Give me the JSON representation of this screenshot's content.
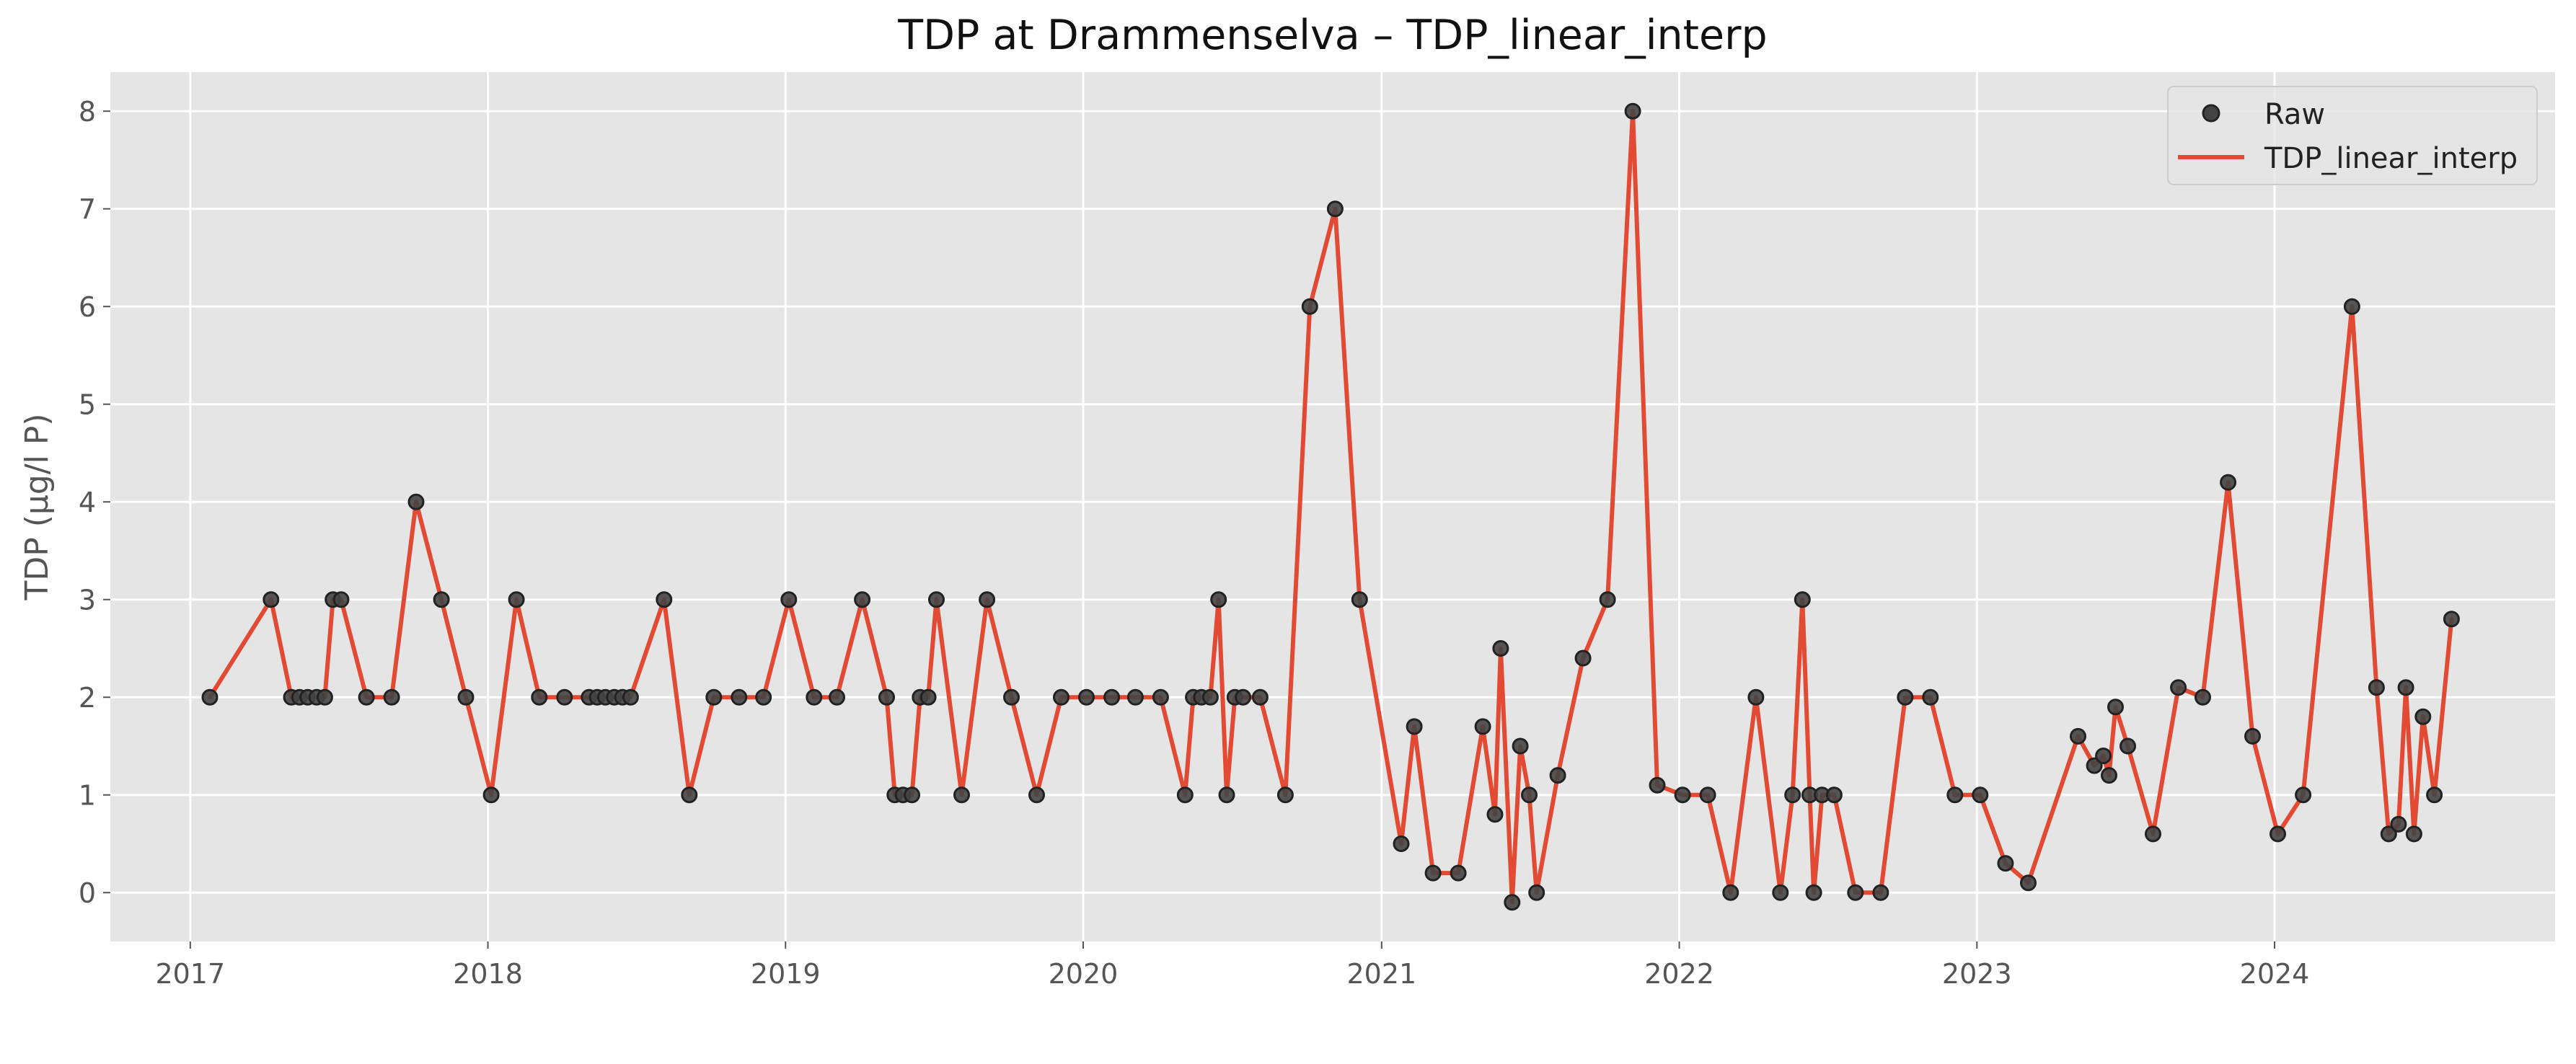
{
  "chart_data": {
    "type": "line",
    "title": "TDP at Drammenselva – TDP_linear_interp",
    "xlabel": "",
    "ylabel": "TDP (µg/l P)",
    "xlim": [
      "2016-09-25",
      "2024-12-10"
    ],
    "ylim": [
      -0.5,
      8.4
    ],
    "x_ticks": [
      "2017",
      "2018",
      "2019",
      "2020",
      "2021",
      "2022",
      "2023",
      "2024"
    ],
    "y_ticks": [
      0,
      1,
      2,
      3,
      4,
      5,
      6,
      7,
      8
    ],
    "grid": true,
    "legend_position": "top-right",
    "colors": {
      "background": "#e5e5e5",
      "grid": "#ffffff",
      "line": "#e24a33",
      "marker": "#444444",
      "text": "#555555",
      "title": "#111111"
    },
    "series": [
      {
        "name": "Raw",
        "kind": "scatter",
        "points": [
          [
            "2017-01-25",
            2
          ],
          [
            "2017-04-10",
            3
          ],
          [
            "2017-05-05",
            2
          ],
          [
            "2017-05-15",
            2
          ],
          [
            "2017-05-25",
            2
          ],
          [
            "2017-06-05",
            2
          ],
          [
            "2017-06-15",
            2
          ],
          [
            "2017-06-25",
            3
          ],
          [
            "2017-07-05",
            3
          ],
          [
            "2017-08-05",
            2
          ],
          [
            "2017-09-05",
            2
          ],
          [
            "2017-10-05",
            4
          ],
          [
            "2017-11-05",
            3
          ],
          [
            "2017-12-05",
            2
          ],
          [
            "2018-01-05",
            1
          ],
          [
            "2018-02-05",
            3
          ],
          [
            "2018-03-05",
            2
          ],
          [
            "2018-04-05",
            2
          ],
          [
            "2018-05-05",
            2
          ],
          [
            "2018-05-15",
            2
          ],
          [
            "2018-05-25",
            2
          ],
          [
            "2018-06-05",
            2
          ],
          [
            "2018-06-15",
            2
          ],
          [
            "2018-06-25",
            2
          ],
          [
            "2018-08-05",
            3
          ],
          [
            "2018-09-05",
            1
          ],
          [
            "2018-10-05",
            2
          ],
          [
            "2018-11-05",
            2
          ],
          [
            "2018-12-05",
            2
          ],
          [
            "2019-01-05",
            3
          ],
          [
            "2019-02-05",
            2
          ],
          [
            "2019-03-05",
            2
          ],
          [
            "2019-04-05",
            3
          ],
          [
            "2019-05-05",
            2
          ],
          [
            "2019-05-15",
            1
          ],
          [
            "2019-05-25",
            1
          ],
          [
            "2019-06-05",
            1
          ],
          [
            "2019-06-15",
            2
          ],
          [
            "2019-06-25",
            2
          ],
          [
            "2019-07-05",
            3
          ],
          [
            "2019-08-05",
            1
          ],
          [
            "2019-09-05",
            3
          ],
          [
            "2019-10-05",
            2
          ],
          [
            "2019-11-05",
            1
          ],
          [
            "2019-12-05",
            2
          ],
          [
            "2020-01-05",
            2
          ],
          [
            "2020-02-05",
            2
          ],
          [
            "2020-03-05",
            2
          ],
          [
            "2020-04-05",
            2
          ],
          [
            "2020-05-05",
            1
          ],
          [
            "2020-05-15",
            2
          ],
          [
            "2020-05-25",
            2
          ],
          [
            "2020-06-05",
            2
          ],
          [
            "2020-06-15",
            3
          ],
          [
            "2020-06-25",
            1
          ],
          [
            "2020-07-05",
            2
          ],
          [
            "2020-07-15",
            2
          ],
          [
            "2020-08-05",
            2
          ],
          [
            "2020-09-05",
            1
          ],
          [
            "2020-10-05",
            6
          ],
          [
            "2020-11-05",
            7
          ],
          [
            "2020-12-05",
            3
          ],
          [
            "2021-01-25",
            0.5
          ],
          [
            "2021-02-10",
            1.7
          ],
          [
            "2021-03-05",
            0.2
          ],
          [
            "2021-04-05",
            0.2
          ],
          [
            "2021-05-05",
            1.7
          ],
          [
            "2021-05-20",
            0.8
          ],
          [
            "2021-05-27",
            2.5
          ],
          [
            "2021-06-10",
            -0.1
          ],
          [
            "2021-06-20",
            1.5
          ],
          [
            "2021-07-01",
            1
          ],
          [
            "2021-07-10",
            0
          ],
          [
            "2021-08-05",
            1.2
          ],
          [
            "2021-09-05",
            2.4
          ],
          [
            "2021-10-05",
            3
          ],
          [
            "2021-11-05",
            8
          ],
          [
            "2021-12-05",
            1.1
          ],
          [
            "2022-01-05",
            1
          ],
          [
            "2022-02-05",
            1
          ],
          [
            "2022-03-05",
            0
          ],
          [
            "2022-04-05",
            2
          ],
          [
            "2022-05-05",
            0
          ],
          [
            "2022-05-20",
            1
          ],
          [
            "2022-06-01",
            3
          ],
          [
            "2022-06-10",
            1
          ],
          [
            "2022-06-15",
            0
          ],
          [
            "2022-06-25",
            1
          ],
          [
            "2022-07-10",
            1
          ],
          [
            "2022-08-05",
            0
          ],
          [
            "2022-09-05",
            0
          ],
          [
            "2022-10-05",
            2
          ],
          [
            "2022-11-05",
            2
          ],
          [
            "2022-12-05",
            1
          ],
          [
            "2023-01-05",
            1
          ],
          [
            "2023-02-05",
            0.3
          ],
          [
            "2023-03-05",
            0.1
          ],
          [
            "2023-05-05",
            1.6
          ],
          [
            "2023-05-25",
            1.3
          ],
          [
            "2023-06-05",
            1.4
          ],
          [
            "2023-06-12",
            1.2
          ],
          [
            "2023-06-20",
            1.9
          ],
          [
            "2023-07-05",
            1.5
          ],
          [
            "2023-08-05",
            0.6
          ],
          [
            "2023-09-05",
            2.1
          ],
          [
            "2023-10-05",
            2
          ],
          [
            "2023-11-05",
            4.2
          ],
          [
            "2023-12-05",
            1.6
          ],
          [
            "2024-01-05",
            0.6
          ],
          [
            "2024-02-05",
            1
          ],
          [
            "2024-04-05",
            6
          ],
          [
            "2024-05-05",
            2.1
          ],
          [
            "2024-05-20",
            0.6
          ],
          [
            "2024-06-01",
            0.7
          ],
          [
            "2024-06-10",
            2.1
          ],
          [
            "2024-06-20",
            0.6
          ],
          [
            "2024-07-01",
            1.8
          ],
          [
            "2024-07-15",
            1
          ],
          [
            "2024-08-05",
            2.8
          ]
        ]
      },
      {
        "name": "TDP_linear_interp",
        "kind": "line",
        "points": [
          [
            "2017-01-25",
            2
          ],
          [
            "2017-04-10",
            3
          ],
          [
            "2017-05-05",
            2
          ],
          [
            "2017-05-15",
            2
          ],
          [
            "2017-05-25",
            2
          ],
          [
            "2017-06-05",
            2
          ],
          [
            "2017-06-15",
            2
          ],
          [
            "2017-06-25",
            3
          ],
          [
            "2017-07-05",
            3
          ],
          [
            "2017-08-05",
            2
          ],
          [
            "2017-09-05",
            2
          ],
          [
            "2017-10-05",
            4
          ],
          [
            "2017-11-05",
            3
          ],
          [
            "2017-12-05",
            2
          ],
          [
            "2018-01-05",
            1
          ],
          [
            "2018-02-05",
            3
          ],
          [
            "2018-03-05",
            2
          ],
          [
            "2018-04-05",
            2
          ],
          [
            "2018-05-05",
            2
          ],
          [
            "2018-05-15",
            2
          ],
          [
            "2018-05-25",
            2
          ],
          [
            "2018-06-05",
            2
          ],
          [
            "2018-06-15",
            2
          ],
          [
            "2018-06-25",
            2
          ],
          [
            "2018-08-05",
            3
          ],
          [
            "2018-09-05",
            1
          ],
          [
            "2018-10-05",
            2
          ],
          [
            "2018-11-05",
            2
          ],
          [
            "2018-12-05",
            2
          ],
          [
            "2019-01-05",
            3
          ],
          [
            "2019-02-05",
            2
          ],
          [
            "2019-03-05",
            2
          ],
          [
            "2019-04-05",
            3
          ],
          [
            "2019-05-05",
            2
          ],
          [
            "2019-05-15",
            1
          ],
          [
            "2019-05-25",
            1
          ],
          [
            "2019-06-05",
            1
          ],
          [
            "2019-06-15",
            2
          ],
          [
            "2019-06-25",
            2
          ],
          [
            "2019-07-05",
            3
          ],
          [
            "2019-08-05",
            1
          ],
          [
            "2019-09-05",
            3
          ],
          [
            "2019-10-05",
            2
          ],
          [
            "2019-11-05",
            1
          ],
          [
            "2019-12-05",
            2
          ],
          [
            "2020-01-05",
            2
          ],
          [
            "2020-02-05",
            2
          ],
          [
            "2020-03-05",
            2
          ],
          [
            "2020-04-05",
            2
          ],
          [
            "2020-05-05",
            1
          ],
          [
            "2020-05-15",
            2
          ],
          [
            "2020-05-25",
            2
          ],
          [
            "2020-06-05",
            2
          ],
          [
            "2020-06-15",
            3
          ],
          [
            "2020-06-25",
            1
          ],
          [
            "2020-07-05",
            2
          ],
          [
            "2020-07-15",
            2
          ],
          [
            "2020-08-05",
            2
          ],
          [
            "2020-09-05",
            1
          ],
          [
            "2020-10-05",
            6
          ],
          [
            "2020-11-05",
            7
          ],
          [
            "2020-12-05",
            3
          ],
          [
            "2021-01-25",
            0.5
          ],
          [
            "2021-02-10",
            1.7
          ],
          [
            "2021-03-05",
            0.2
          ],
          [
            "2021-04-05",
            0.2
          ],
          [
            "2021-05-05",
            1.7
          ],
          [
            "2021-05-20",
            0.8
          ],
          [
            "2021-05-27",
            2.5
          ],
          [
            "2021-06-10",
            -0.1
          ],
          [
            "2021-06-20",
            1.5
          ],
          [
            "2021-07-01",
            1
          ],
          [
            "2021-07-10",
            0
          ],
          [
            "2021-08-05",
            1.2
          ],
          [
            "2021-09-05",
            2.4
          ],
          [
            "2021-10-05",
            3
          ],
          [
            "2021-11-05",
            8
          ],
          [
            "2021-12-05",
            1.1
          ],
          [
            "2022-01-05",
            1
          ],
          [
            "2022-02-05",
            1
          ],
          [
            "2022-03-05",
            0
          ],
          [
            "2022-04-05",
            2
          ],
          [
            "2022-05-05",
            0
          ],
          [
            "2022-05-20",
            1
          ],
          [
            "2022-06-01",
            3
          ],
          [
            "2022-06-10",
            1
          ],
          [
            "2022-06-15",
            0
          ],
          [
            "2022-06-25",
            1
          ],
          [
            "2022-07-10",
            1
          ],
          [
            "2022-08-05",
            0
          ],
          [
            "2022-09-05",
            0
          ],
          [
            "2022-10-05",
            2
          ],
          [
            "2022-11-05",
            2
          ],
          [
            "2022-12-05",
            1
          ],
          [
            "2023-01-05",
            1
          ],
          [
            "2023-02-05",
            0.3
          ],
          [
            "2023-03-05",
            0.1
          ],
          [
            "2023-05-05",
            1.6
          ],
          [
            "2023-05-25",
            1.3
          ],
          [
            "2023-06-05",
            1.4
          ],
          [
            "2023-06-12",
            1.2
          ],
          [
            "2023-06-20",
            1.9
          ],
          [
            "2023-07-05",
            1.5
          ],
          [
            "2023-08-05",
            0.6
          ],
          [
            "2023-09-05",
            2.1
          ],
          [
            "2023-10-05",
            2
          ],
          [
            "2023-11-05",
            4.2
          ],
          [
            "2023-12-05",
            1.6
          ],
          [
            "2024-01-05",
            0.6
          ],
          [
            "2024-02-05",
            1
          ],
          [
            "2024-04-05",
            6
          ],
          [
            "2024-05-05",
            2.1
          ],
          [
            "2024-05-20",
            0.6
          ],
          [
            "2024-06-01",
            0.7
          ],
          [
            "2024-06-10",
            2.1
          ],
          [
            "2024-06-20",
            0.6
          ],
          [
            "2024-07-01",
            1.8
          ],
          [
            "2024-07-15",
            1
          ],
          [
            "2024-08-05",
            2.8
          ]
        ]
      }
    ]
  }
}
